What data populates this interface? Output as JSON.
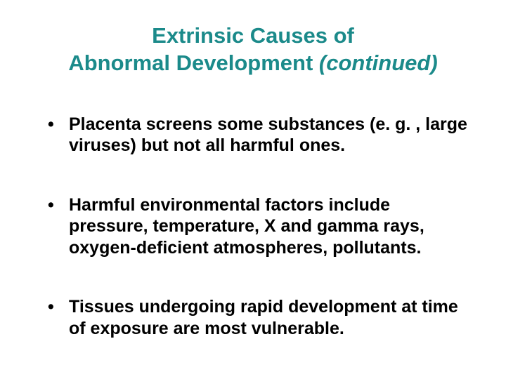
{
  "slide": {
    "title_line1": "Extrinsic Causes of",
    "title_line2_main": "Abnormal Development ",
    "title_line2_suffix": "(continued)",
    "title_color": "#1b8a8a",
    "title_fontsize": 31,
    "body_color": "#000000",
    "body_fontsize": 25,
    "background_color": "#ffffff",
    "bullets": [
      "Placenta screens some substances (e. g. , large viruses) but not all harmful ones.",
      "Harmful environmental factors include pressure, temperature, X and gamma rays, oxygen-deficient atmospheres, pollutants.",
      "Tissues undergoing rapid development at time of exposure are most vulnerable."
    ]
  }
}
